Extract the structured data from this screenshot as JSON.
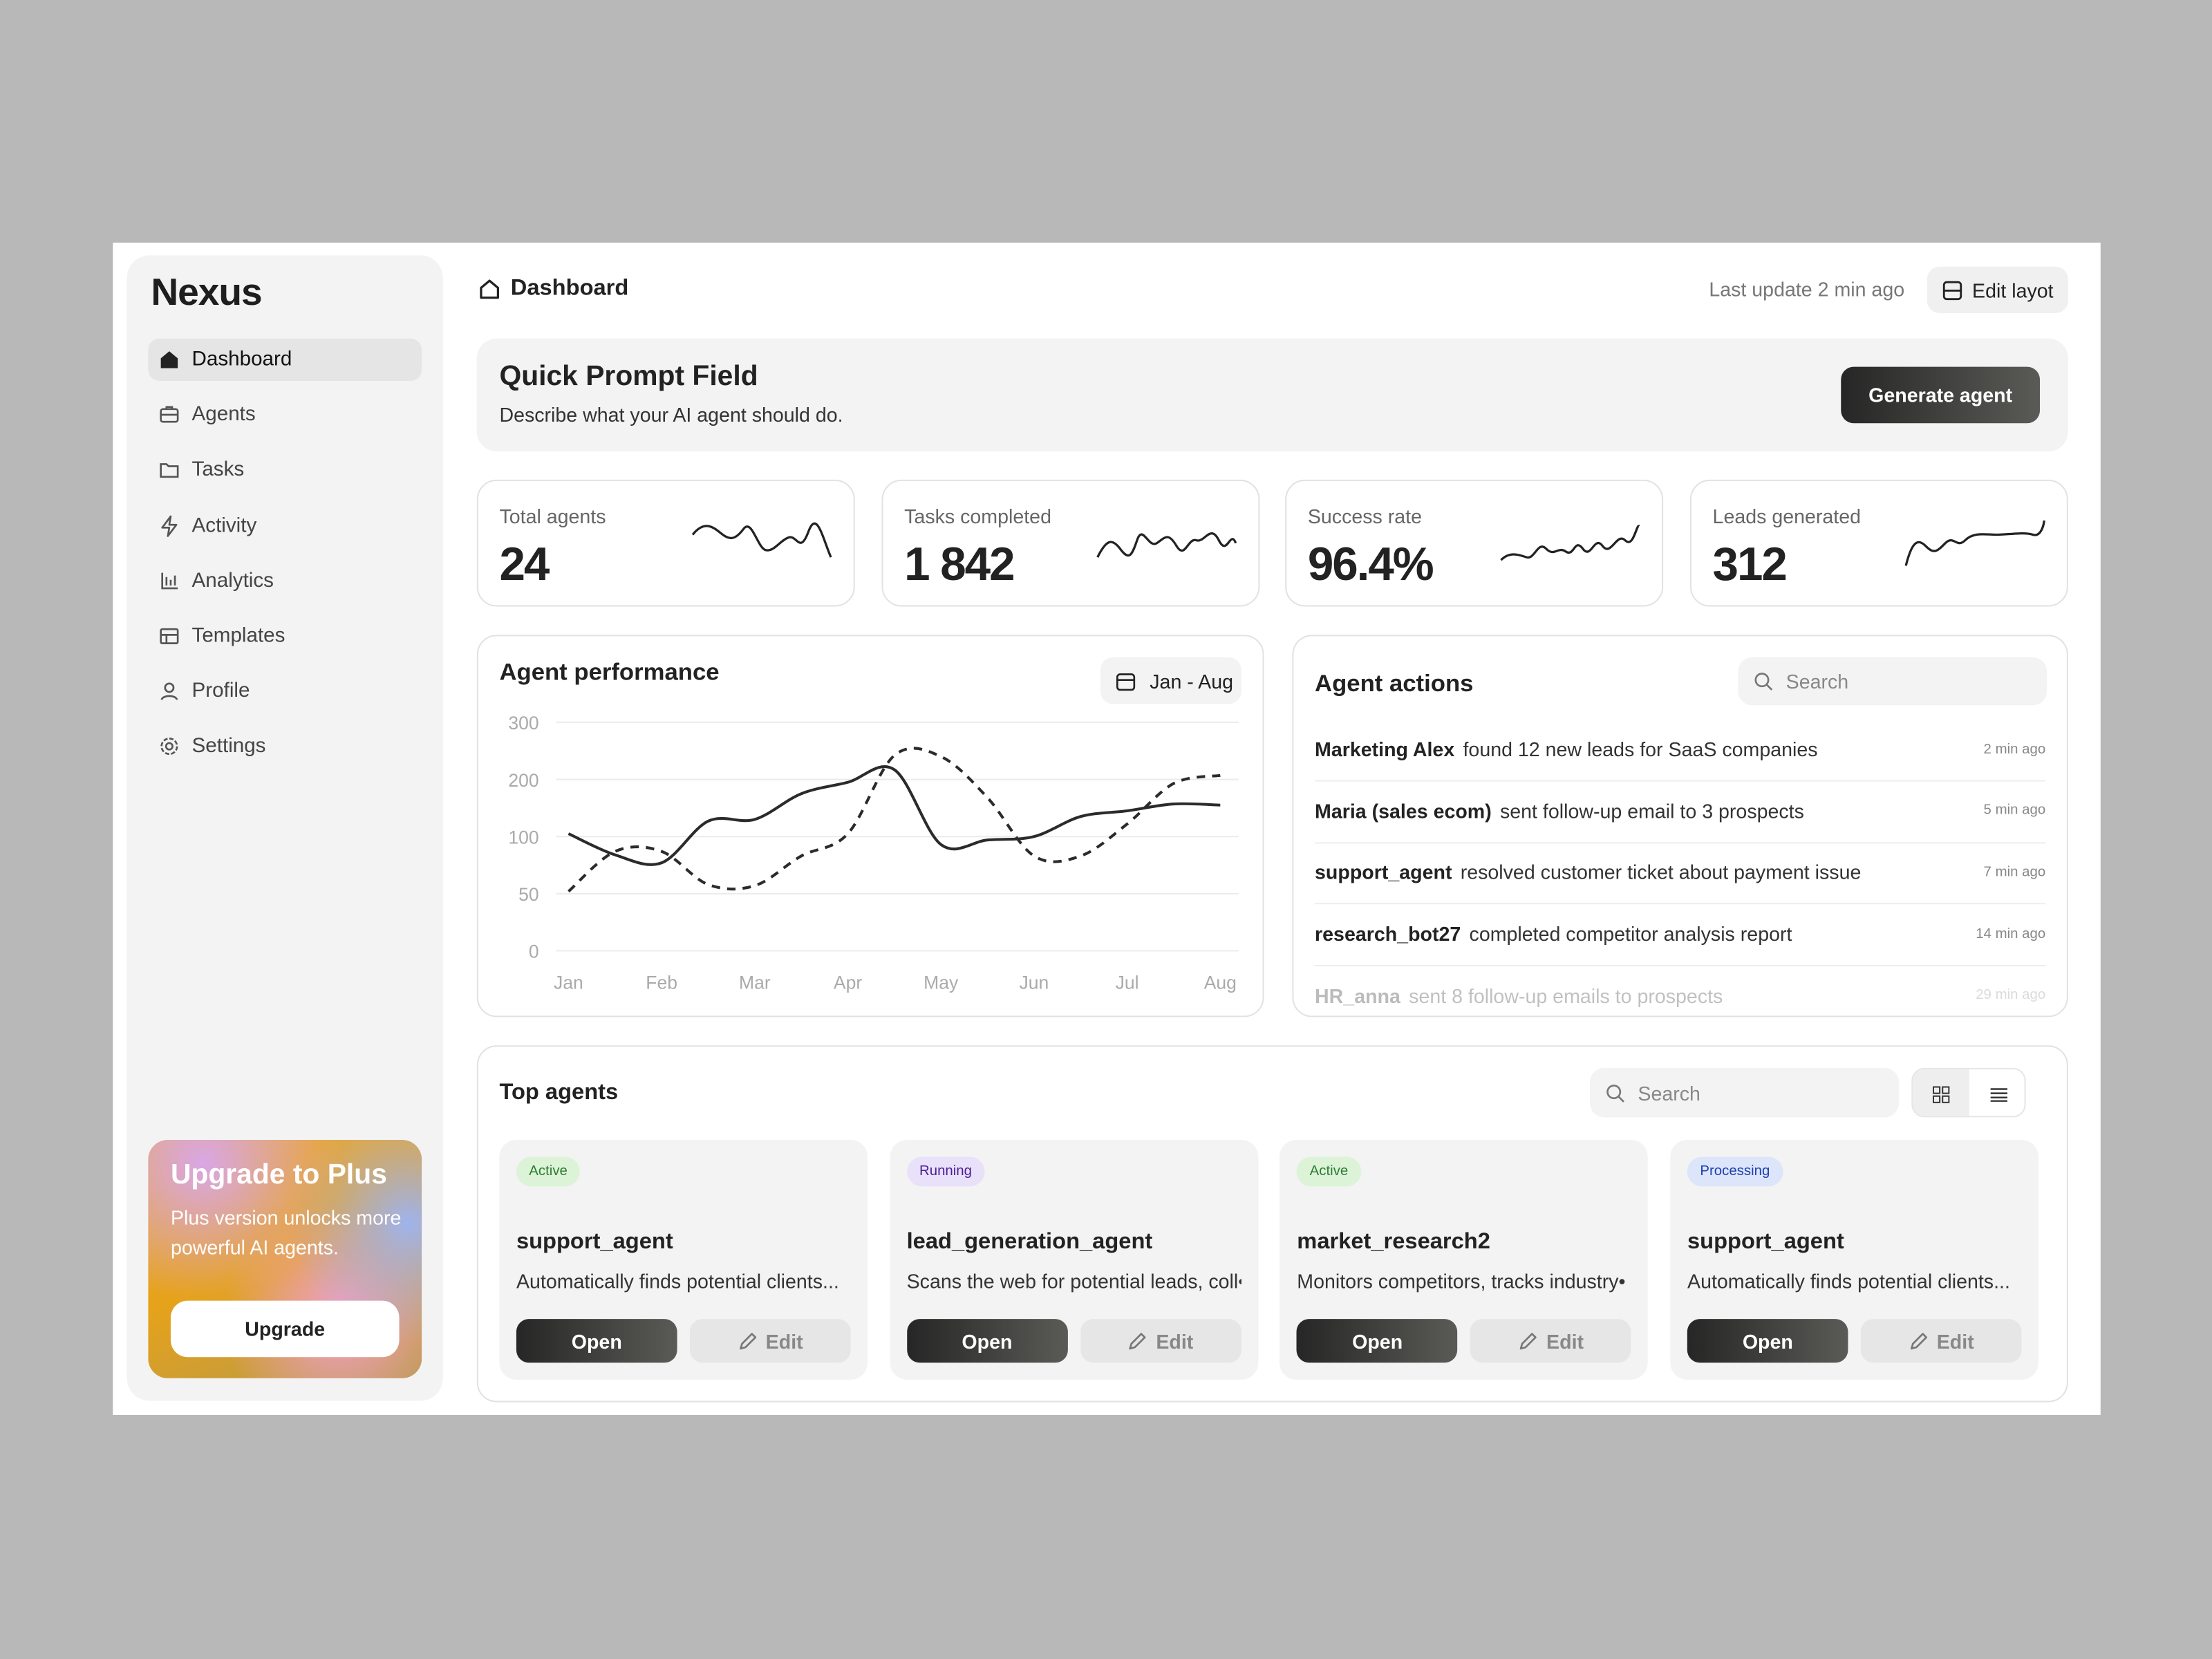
{
  "sidebar": {
    "logo": "Nexus",
    "nav": [
      "Dashboard",
      "Agents",
      "Tasks",
      "Activity",
      "Analytics",
      "Templates",
      "Profile",
      "Settings"
    ],
    "upgrade": {
      "title": "Upgrade to Plus",
      "text": "Plus version unlocks more powerful AI agents.",
      "button": "Upgrade"
    }
  },
  "header": {
    "title": "Dashboard",
    "last_update": "Last update 2 min ago",
    "edit_button": "Edit layot"
  },
  "prompt": {
    "title": "Quick Prompt Field",
    "placeholder": "Describe what your AI agent should do.",
    "button": "Generate agent"
  },
  "stats": [
    {
      "label": "Total agents",
      "value": "24"
    },
    {
      "label": "Tasks completed",
      "value": "1 842"
    },
    {
      "label": "Success rate",
      "value": "96.4%"
    },
    {
      "label": "Leads generated",
      "value": "312"
    }
  ],
  "chart_data": {
    "type": "line",
    "title": "Agent performance",
    "date_range": "Jan - Aug",
    "categories": [
      "Jan",
      null,
      "Feb",
      null,
      "Mar",
      null,
      "Apr",
      null,
      "May",
      null,
      "Jun",
      null,
      "Jul",
      null,
      "Aug"
    ],
    "series": [
      {
        "color": "#2b2b2b",
        "style": "solid",
        "values": [
          105,
          84,
          77,
          127,
          130,
          175,
          195,
          217,
          93,
          97,
          100,
          135,
          145,
          157,
          155
        ]
      },
      {
        "color": "#2b2b2b",
        "style": "dashed",
        "values": [
          52,
          87,
          87,
          58,
          57,
          83,
          105,
          242,
          240,
          168,
          83,
          83,
          122,
          193,
          207
        ]
      }
    ],
    "ylim": [
      0,
      300
    ],
    "yticks": [
      0,
      50,
      100,
      200,
      300
    ],
    "grid": true
  },
  "actions": {
    "title": "Agent actions",
    "search": "Search",
    "items": [
      {
        "agent": "Marketing Alex",
        "text": "found 12 new leads for SaaS companies",
        "time": "2 min ago"
      },
      {
        "agent": "Maria (sales ecom)",
        "text": "sent follow-up email to 3 prospects",
        "time": "5 min ago"
      },
      {
        "agent": "support_agent",
        "text": "resolved customer ticket about payment issue",
        "time": "7 min ago"
      },
      {
        "agent": "research_bot27",
        "text": "completed competitor analysis report",
        "time": "14 min ago"
      },
      {
        "agent": "HR_anna",
        "text": "sent 8 follow-up emails to prospects",
        "time": "29 min ago"
      }
    ]
  },
  "top_agents": {
    "title": "Top agents",
    "search": "Search",
    "cards": [
      {
        "status": "Active",
        "status_color": "#2e7d32",
        "status_bg": "#dcf3d8",
        "name": "support_agent",
        "description": "Automatically finds potential clients...",
        "open": "Open",
        "edit": "Edit"
      },
      {
        "status": "Running",
        "status_color": "#4c1d95",
        "status_bg": "#e9e0fa",
        "name": "lead_generation_agent",
        "description": "Scans the web for potential leads, coll•",
        "open": "Open",
        "edit": "Edit"
      },
      {
        "status": "Active",
        "status_color": "#2e7d32",
        "status_bg": "#dcf3d8",
        "name": "market_research2",
        "description": "Monitors competitors, tracks industry•",
        "open": "Open",
        "edit": "Edit"
      },
      {
        "status": "Processing",
        "status_color": "#1e40af",
        "status_bg": "#dce5fa",
        "name": "support_agent",
        "description": "Automatically finds potential clients...",
        "open": "Open",
        "edit": "Edit"
      }
    ]
  }
}
